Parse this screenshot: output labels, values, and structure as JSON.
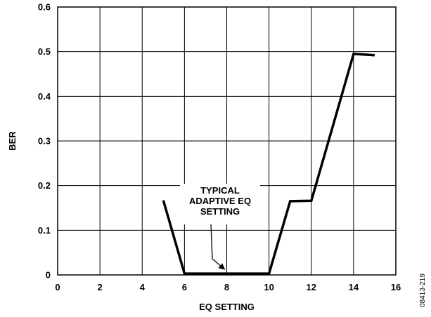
{
  "chart_data": {
    "type": "line",
    "xlabel": "EQ SETTING",
    "ylabel": "BER",
    "xlim": [
      0,
      16
    ],
    "ylim": [
      0,
      0.6
    ],
    "x_ticks": [
      0,
      2,
      4,
      6,
      8,
      10,
      12,
      14,
      16
    ],
    "x_tick_labels": [
      "0",
      "2",
      "4",
      "6",
      "8",
      "10",
      "12",
      "14",
      "16"
    ],
    "y_ticks": [
      0,
      0.1,
      0.2,
      0.3,
      0.4,
      0.5,
      0.6
    ],
    "y_tick_labels": [
      "0",
      "0.1",
      "0.2",
      "0.3",
      "0.4",
      "0.5",
      "0.6"
    ],
    "grid": true,
    "series": [
      {
        "x": [
          5,
          6,
          7,
          8,
          9,
          10,
          11,
          12,
          13,
          14,
          15
        ],
        "y": [
          0.167,
          0.003,
          0.003,
          0.003,
          0.003,
          0.003,
          0.165,
          0.166,
          0.33,
          0.495,
          0.492
        ],
        "color": "#000000"
      }
    ],
    "annotations": [
      {
        "lines": [
          "TYPICAL",
          "ADAPTIVE EQ",
          "SETTING"
        ],
        "arrow_to": {
          "x": 8,
          "y": 0.003
        }
      }
    ],
    "figure_id": "08413-219"
  }
}
